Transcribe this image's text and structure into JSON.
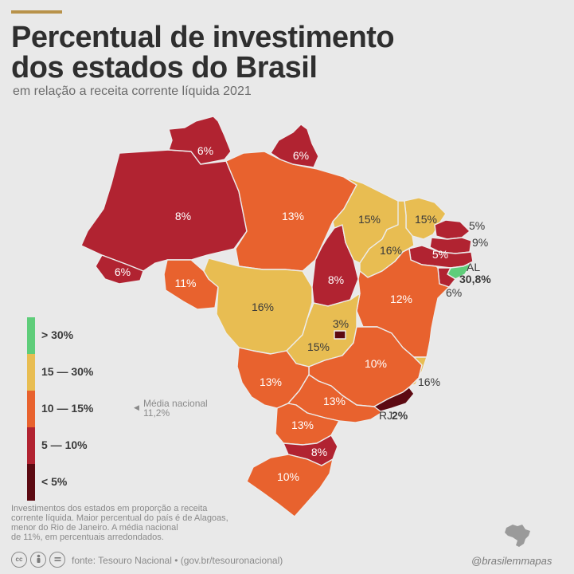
{
  "header": {
    "title_line1": "Percentual de investimento",
    "title_line2": "dos estados do Brasil",
    "subtitle": "em relação a receita corrente líquida 2021"
  },
  "colors": {
    "above_30": "#5fcd7a",
    "range_15_30": "#e8bd52",
    "range_10_15": "#e8622e",
    "range_5_10": "#b12331",
    "below_5": "#5c0a12"
  },
  "legend": {
    "items": [
      {
        "label": "> 30%",
        "color": "#5fcd7a"
      },
      {
        "label": "15 — 30%",
        "color": "#e8bd52"
      },
      {
        "label": "10 — 15%",
        "color": "#e8622e"
      },
      {
        "label": "5 — 10%",
        "color": "#b12331"
      },
      {
        "label": "< 5%",
        "color": "#5c0a12"
      }
    ],
    "average_note_line1": "Média nacional",
    "average_note_line2": "11,2%"
  },
  "map": {
    "states": [
      {
        "value": "8%",
        "color": "#b12331"
      },
      {
        "value": "6%",
        "color": "#b12331"
      },
      {
        "value": "6%",
        "color": "#b12331"
      },
      {
        "value": "11%",
        "color": "#e8622e"
      },
      {
        "value": "13%",
        "color": "#e8622e"
      },
      {
        "value": "6%",
        "color": "#b12331"
      },
      {
        "value": "16%",
        "color": "#e8bd52"
      },
      {
        "value": "8%",
        "color": "#b12331"
      },
      {
        "value": "15%",
        "color": "#e8bd52"
      },
      {
        "value": "15%",
        "color": "#e8bd52"
      },
      {
        "value": "16%",
        "color": "#e8bd52"
      },
      {
        "value": "5%",
        "color": "#b12331"
      },
      {
        "value": "5%",
        "color": "#b12331"
      },
      {
        "value": "9%",
        "color": "#b12331"
      },
      {
        "value": "AL",
        "color": "#5fcd7a"
      },
      {
        "value": "30,8%",
        "color": "#5fcd7a"
      },
      {
        "value": "6%",
        "color": "#b12331"
      },
      {
        "value": "12%",
        "color": "#e8622e"
      },
      {
        "value": "15%",
        "color": "#e8bd52"
      },
      {
        "value": "3%",
        "color": "#5c0a12"
      },
      {
        "value": "10%",
        "color": "#e8622e"
      },
      {
        "value": "16%",
        "color": "#e8bd52"
      },
      {
        "value": "13%",
        "color": "#e8622e"
      },
      {
        "value": "13%",
        "color": "#e8622e"
      },
      {
        "value": "RJ",
        "color": "#5c0a12"
      },
      {
        "value": "2%",
        "color": "#5c0a12"
      },
      {
        "value": "13%",
        "color": "#e8622e"
      },
      {
        "value": "8%",
        "color": "#b12331"
      },
      {
        "value": "10%",
        "color": "#e8622e"
      }
    ]
  },
  "note": {
    "line1": "Investimentos dos estados em proporção a receita",
    "line2": "corrente líquida. Maior percentual do país é de Alagoas,",
    "line3": "menor do Rio de Janeiro. A média nacional",
    "line4": "de 11%, em percentuais arredondados."
  },
  "footer": {
    "cc_icons": [
      "cc",
      "by",
      "nd"
    ],
    "source": "fonte: Tesouro Nacional • (gov.br/tesouronacional)",
    "handle": "@brasilemmapas"
  }
}
